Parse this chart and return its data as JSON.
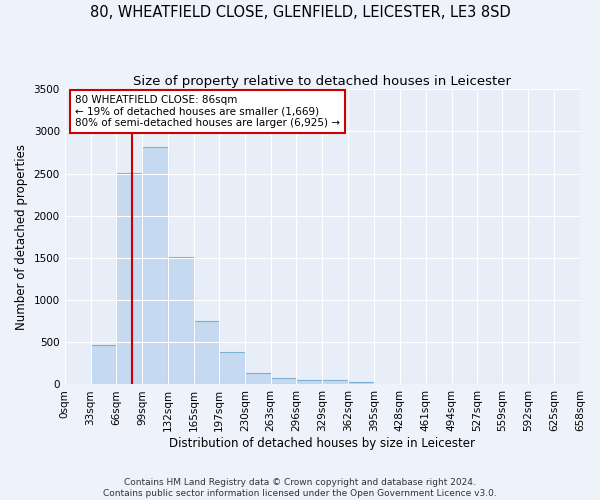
{
  "title": "80, WHEATFIELD CLOSE, GLENFIELD, LEICESTER, LE3 8SD",
  "subtitle": "Size of property relative to detached houses in Leicester",
  "xlabel": "Distribution of detached houses by size in Leicester",
  "ylabel": "Number of detached properties",
  "bar_color": "#c5d9f0",
  "bar_edge_color": "#7bafd4",
  "background_color": "#e8eef8",
  "grid_color": "#ffffff",
  "bin_edges": [
    0,
    33,
    66,
    99,
    132,
    165,
    197,
    230,
    263,
    296,
    329,
    362,
    395,
    428,
    461,
    494,
    527,
    559,
    592,
    625,
    658
  ],
  "bar_heights": [
    10,
    470,
    2510,
    2820,
    1510,
    750,
    380,
    140,
    75,
    55,
    55,
    30,
    10,
    0,
    0,
    0,
    0,
    0,
    0,
    0
  ],
  "property_size": 86,
  "vline_color": "#cc0000",
  "annotation_line1": "80 WHEATFIELD CLOSE: 86sqm",
  "annotation_line2": "← 19% of detached houses are smaller (1,669)",
  "annotation_line3": "80% of semi-detached houses are larger (6,925) →",
  "annotation_box_color": "#ffffff",
  "annotation_box_edge_color": "#cc0000",
  "ylim": [
    0,
    3500
  ],
  "yticks": [
    0,
    500,
    1000,
    1500,
    2000,
    2500,
    3000,
    3500
  ],
  "footnote": "Contains HM Land Registry data © Crown copyright and database right 2024.\nContains public sector information licensed under the Open Government Licence v3.0.",
  "title_fontsize": 10.5,
  "subtitle_fontsize": 9.5,
  "axis_label_fontsize": 8.5,
  "tick_fontsize": 7.5,
  "annotation_fontsize": 7.5,
  "footnote_fontsize": 6.5
}
